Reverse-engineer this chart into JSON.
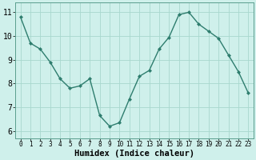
{
  "x": [
    0,
    1,
    2,
    3,
    4,
    5,
    6,
    7,
    8,
    9,
    10,
    11,
    12,
    13,
    14,
    15,
    16,
    17,
    18,
    19,
    20,
    21,
    22,
    23
  ],
  "y": [
    10.8,
    9.7,
    9.45,
    8.9,
    8.2,
    7.8,
    7.9,
    8.2,
    6.65,
    6.2,
    6.35,
    7.35,
    8.3,
    8.55,
    9.45,
    9.95,
    10.9,
    11.0,
    10.5,
    10.2,
    9.9,
    9.2,
    8.5,
    7.6
  ],
  "line_color": "#2e7d6e",
  "marker": "D",
  "marker_size": 2.0,
  "bg_color": "#cff0eb",
  "grid_color": "#a8d8ce",
  "xlabel": "Humidex (Indice chaleur)",
  "ylim": [
    5.7,
    11.4
  ],
  "xlim": [
    -0.5,
    23.5
  ],
  "yticks": [
    6,
    7,
    8,
    9,
    10,
    11
  ],
  "xticks": [
    0,
    1,
    2,
    3,
    4,
    5,
    6,
    7,
    8,
    9,
    10,
    11,
    12,
    13,
    14,
    15,
    16,
    17,
    18,
    19,
    20,
    21,
    22,
    23
  ],
  "xlabel_fontsize": 7.5,
  "ytick_fontsize": 7,
  "xtick_fontsize": 5.5,
  "line_width": 1.0
}
